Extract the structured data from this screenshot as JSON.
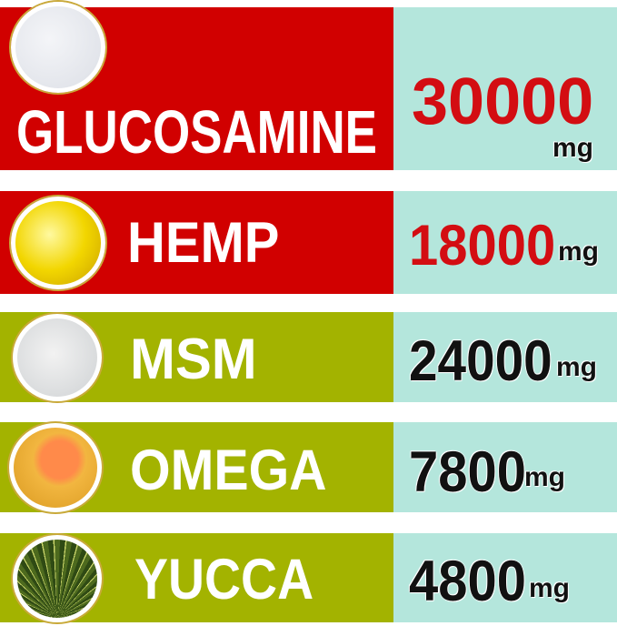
{
  "colors": {
    "red": "#d10000",
    "green": "#a3b300",
    "teal": "#b4e6dc",
    "value_red": "#d30d12"
  },
  "rows": [
    {
      "name": "GLUCOSAMINE",
      "value": "30000",
      "unit": "mg",
      "icon": "white-powder-icon"
    },
    {
      "name": "HEMP",
      "value": "18000",
      "unit": "mg",
      "icon": "hemp-oil-icon"
    },
    {
      "name": "MSM",
      "value": "24000",
      "unit": "mg",
      "icon": "msm-crystals-icon"
    },
    {
      "name": "OMEGA",
      "value": "7800",
      "unit": "mg",
      "icon": "salmon-omega-icon"
    },
    {
      "name": "YUCCA",
      "value": "4800",
      "unit": "mg",
      "icon": "yucca-leaves-icon"
    }
  ]
}
